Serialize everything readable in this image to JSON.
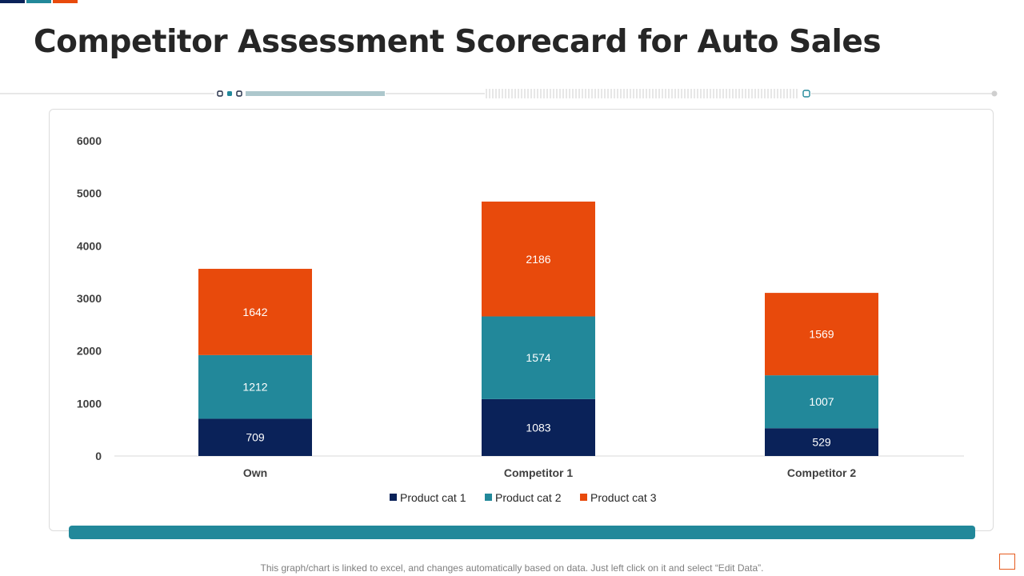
{
  "page": {
    "title": "Competitor Assessment Scorecard for Auto Sales",
    "footnote": "This graph/chart is linked to excel,  and changes automatically based on data. Just left click on it and select “Edit Data”."
  },
  "colors": {
    "navy": "#0a2259",
    "teal": "#22889a",
    "orange": "#e84a0c",
    "axis": "#d9d9d9",
    "bottom_bar": "#22889a"
  },
  "chart_data": {
    "type": "bar",
    "stacked": true,
    "title": "",
    "xlabel": "",
    "ylabel": "",
    "categories": [
      "Own",
      "Competitor 1",
      "Competitor 2"
    ],
    "series": [
      {
        "name": "Product cat 1",
        "color": "#0a2259",
        "values": [
          709,
          1083,
          529
        ]
      },
      {
        "name": "Product cat 2",
        "color": "#22889a",
        "values": [
          1212,
          1574,
          1007
        ]
      },
      {
        "name": "Product cat 3",
        "color": "#e84a0c",
        "values": [
          1642,
          2186,
          1569
        ]
      }
    ],
    "ylim": [
      0,
      6000
    ],
    "yticks": [
      0,
      1000,
      2000,
      3000,
      4000,
      5000,
      6000
    ],
    "grid": false,
    "legend_position": "bottom-center"
  }
}
